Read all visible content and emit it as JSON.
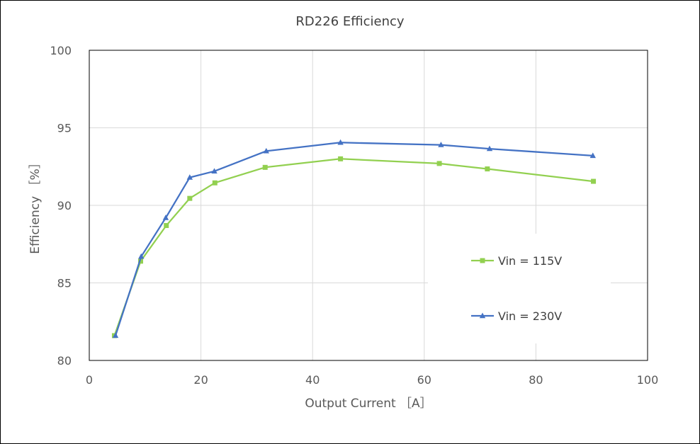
{
  "chart_data": {
    "type": "line",
    "title": "RD226 Efficiency",
    "xlabel": "Output Current ［A］",
    "ylabel": "Efficiency ［%］",
    "xlim": [
      0,
      100
    ],
    "ylim": [
      80,
      100
    ],
    "xticks": [
      0,
      20,
      40,
      60,
      80,
      100
    ],
    "yticks": [
      80,
      85,
      90,
      95,
      100
    ],
    "grid": true,
    "legend_position": "right",
    "series": [
      {
        "name": "Vin = 115V",
        "color": "#92d050",
        "marker": "square",
        "x": [
          4.5,
          9.2,
          13.8,
          18.0,
          22.5,
          31.5,
          45.0,
          62.7,
          71.3,
          90.3
        ],
        "y": [
          81.6,
          86.4,
          88.7,
          90.45,
          91.45,
          92.45,
          93.0,
          92.7,
          92.35,
          91.55
        ]
      },
      {
        "name": "Vin = 230V",
        "color": "#4472c4",
        "marker": "triangle",
        "x": [
          4.7,
          9.3,
          13.7,
          18.0,
          22.4,
          31.7,
          45.0,
          63.0,
          71.7,
          90.2
        ],
        "y": [
          81.6,
          86.7,
          89.2,
          91.8,
          92.2,
          93.5,
          94.05,
          93.9,
          93.65,
          93.2
        ]
      }
    ]
  }
}
